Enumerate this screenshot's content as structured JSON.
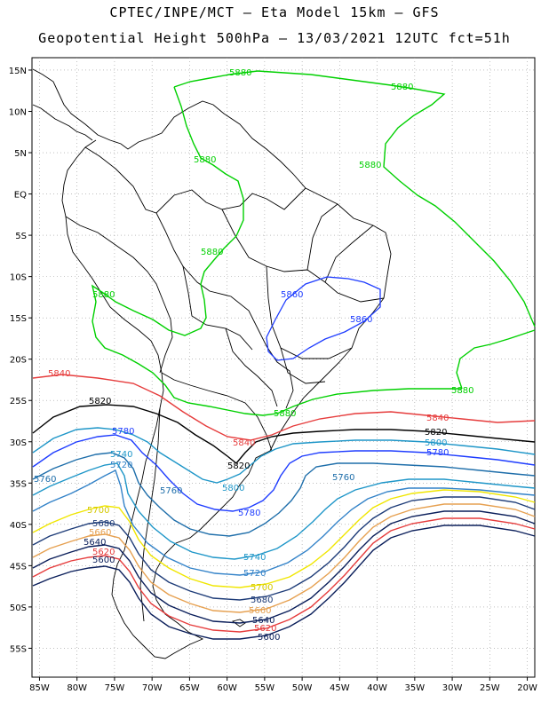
{
  "header": {
    "line1": "CPTEC/INPE/MCT – Eta Model 15km – GFS",
    "line2": "Geopotential Height 500hPa – 13/03/2021 12UTC fct=51h"
  },
  "map": {
    "lon_range": [
      -86,
      -19
    ],
    "lat_range": [
      -58.5,
      16.5
    ],
    "lon_ticks": [
      "85W",
      "80W",
      "75W",
      "70W",
      "65W",
      "60W",
      "55W",
      "50W",
      "45W",
      "40W",
      "35W",
      "30W",
      "25W",
      "20W"
    ],
    "lat_ticks": [
      "15N",
      "10N",
      "5N",
      "EQ",
      "5S",
      "10S",
      "15S",
      "20S",
      "25S",
      "30S",
      "35S",
      "40S",
      "45S",
      "50S",
      "55S"
    ],
    "gridlines": true,
    "grid_style": "dotted"
  },
  "contours": [
    {
      "value": "5880",
      "color": "#00d000"
    },
    {
      "value": "5860",
      "color": "#1e3cff"
    },
    {
      "value": "5840",
      "color": "#e63c3c"
    },
    {
      "value": "5820",
      "color": "#000000"
    },
    {
      "value": "5800",
      "color": "#1e96c8"
    },
    {
      "value": "5780",
      "color": "#1e3cff"
    },
    {
      "value": "5760",
      "color": "#1e6eaa"
    },
    {
      "value": "5740",
      "color": "#1e96c8"
    },
    {
      "value": "5720",
      "color": "#3282c8"
    },
    {
      "value": "5700",
      "color": "#f0e600"
    },
    {
      "value": "5680",
      "color": "#1e3c78"
    },
    {
      "value": "5660",
      "color": "#e6a050"
    },
    {
      "value": "5640",
      "color": "#0a1e5a"
    },
    {
      "value": "5620",
      "color": "#e63c3c"
    },
    {
      "value": "5600",
      "color": "#0a1e5a"
    }
  ],
  "contour_labels": {
    "c5880": "5880",
    "c5860": "5860",
    "c5840": "5840",
    "c5820": "5820",
    "c5800": "5800",
    "c5780": "5780",
    "c5760": "5760",
    "c5740": "5740",
    "c5720": "5720",
    "c5700": "5700",
    "c5680": "5680",
    "c5660": "5660",
    "c5640": "5640",
    "c5620": "5620",
    "c5600": "5600"
  }
}
